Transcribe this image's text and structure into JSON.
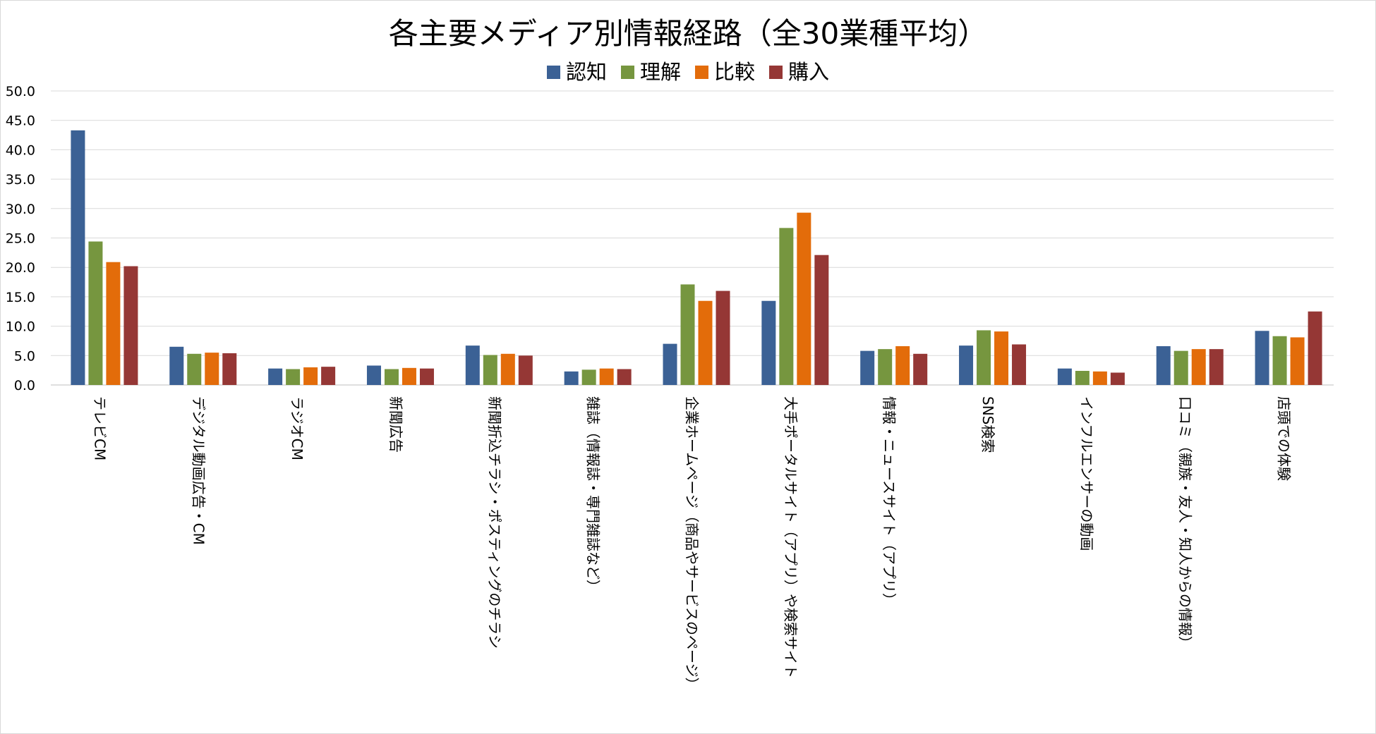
{
  "chart_data": {
    "type": "bar",
    "title": "各主要メディア別情報経路（全30業種平均）",
    "xlabel": "",
    "ylabel": "",
    "ylim": [
      0,
      50
    ],
    "yticks": [
      "0.0",
      "5.0",
      "10.0",
      "15.0",
      "20.0",
      "25.0",
      "30.0",
      "35.0",
      "40.0",
      "45.0",
      "50.0"
    ],
    "grid": true,
    "legend_position": "top-center",
    "categories": [
      "テレビCM",
      "デジタル動画広告・CM",
      "ラジオCM",
      "新聞広告",
      "新聞折込チラシ・ポスティングのチラシ",
      "雑誌（情報誌・専門雑誌など）",
      "企業ホームページ（商品やサービスのページ）",
      "大手ポータルサイト（アプリ）や検索サイト",
      "情報・ニュースサイト（アプリ）",
      "SNS検索",
      "インフルエンサーの動画",
      "口コミ（親族・友人・知人からの情報）",
      "店頭での体験"
    ],
    "series": [
      {
        "name": "認知",
        "color": "#3b6195",
        "values": [
          43.3,
          6.5,
          2.8,
          3.3,
          6.7,
          2.3,
          7.0,
          14.3,
          5.8,
          6.7,
          2.8,
          6.6,
          9.2
        ]
      },
      {
        "name": "理解",
        "color": "#76963f",
        "values": [
          24.4,
          5.3,
          2.7,
          2.7,
          5.1,
          2.6,
          17.1,
          26.7,
          6.1,
          9.3,
          2.4,
          5.8,
          8.3
        ]
      },
      {
        "name": "比較",
        "color": "#e36c0a",
        "values": [
          20.9,
          5.5,
          3.0,
          2.9,
          5.3,
          2.8,
          14.3,
          29.3,
          6.6,
          9.1,
          2.3,
          6.1,
          8.1
        ]
      },
      {
        "name": "購入",
        "color": "#953735",
        "values": [
          20.2,
          5.4,
          3.1,
          2.8,
          5.0,
          2.7,
          16.0,
          22.1,
          5.3,
          6.9,
          2.1,
          6.1,
          12.5
        ]
      }
    ]
  }
}
